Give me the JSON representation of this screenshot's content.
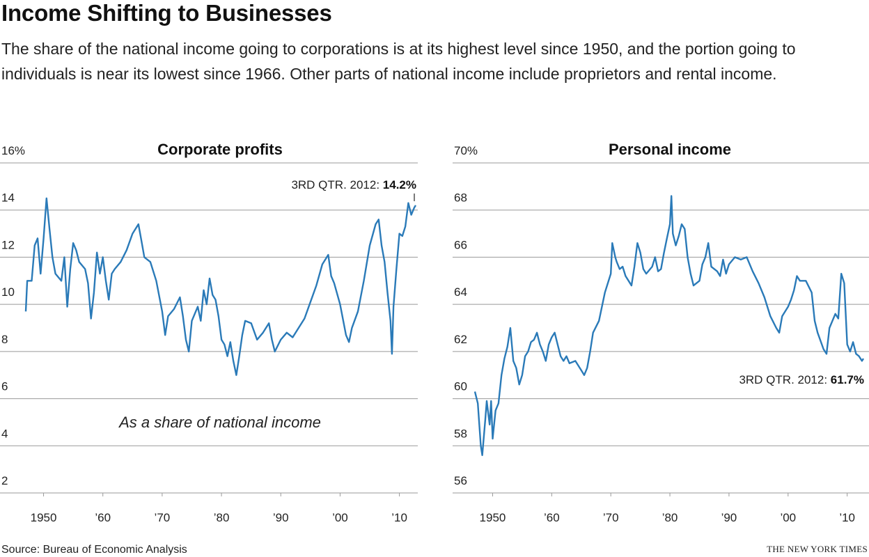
{
  "title": "Income Shifting to Businesses",
  "subtitle": "The share of the national income going to corporations is at its highest level since 1950, and the portion going to individuals is near its lowest since 1966. Other parts of national income include proprietors and rental income.",
  "source": "Source: Bureau of Economic Analysis",
  "credit": "THE NEW YORK TIMES",
  "chart_data": [
    {
      "type": "line",
      "title": "Corporate profits",
      "note": "As a share of national income",
      "annotation": "3RD QTR. 2012:",
      "annotation_value": "14.2%",
      "color": "#2a7ab8",
      "xlim": [
        1947,
        2012.75
      ],
      "xticks": [
        {
          "value": 1950,
          "label": "1950"
        },
        {
          "value": 1960,
          "label": "’60"
        },
        {
          "value": 1970,
          "label": "’70"
        },
        {
          "value": 1980,
          "label": "’80"
        },
        {
          "value": 1990,
          "label": "’90"
        },
        {
          "value": 2000,
          "label": "’00"
        },
        {
          "value": 2010,
          "label": "’10"
        }
      ],
      "ylim": [
        2,
        16
      ],
      "yticks": [
        2,
        4,
        6,
        8,
        10,
        12,
        14,
        {
          "value": 16,
          "label": "16%"
        }
      ],
      "x": [
        1947,
        1947.25,
        1948,
        1948.5,
        1949,
        1949.5,
        1950,
        1950.5,
        1951,
        1951.5,
        1952,
        1953,
        1953.5,
        1954,
        1954.5,
        1955,
        1955.5,
        1956,
        1957,
        1957.5,
        1958,
        1958.5,
        1959,
        1959.5,
        1960,
        1960.5,
        1961,
        1961.5,
        1962,
        1963,
        1964,
        1965,
        1966,
        1966.5,
        1967,
        1968,
        1969,
        1970,
        1970.5,
        1971,
        1972,
        1973,
        1973.5,
        1974,
        1974.5,
        1975,
        1976,
        1976.5,
        1977,
        1977.5,
        1978,
        1978.5,
        1979,
        1979.5,
        1980,
        1980.5,
        1981,
        1981.5,
        1982,
        1982.5,
        1983,
        1983.5,
        1984,
        1985,
        1986,
        1987,
        1988,
        1988.5,
        1989,
        1990,
        1991,
        1992,
        1993,
        1994,
        1995,
        1996,
        1997,
        1998,
        1998.5,
        1999,
        2000,
        2001,
        2001.5,
        2002,
        2003,
        2004,
        2005,
        2006,
        2006.5,
        2007,
        2007.5,
        2008,
        2008.5,
        2008.75,
        2009,
        2009.5,
        2010,
        2010.5,
        2011,
        2011.5,
        2012,
        2012.5,
        2012.75
      ],
      "values": [
        9.7,
        11.0,
        11.0,
        12.5,
        12.8,
        11.3,
        12.8,
        14.5,
        13.2,
        12.0,
        11.3,
        11.0,
        12.0,
        9.9,
        11.5,
        12.6,
        12.3,
        11.8,
        11.5,
        10.9,
        9.4,
        10.5,
        12.2,
        11.3,
        12.0,
        11.0,
        10.2,
        11.3,
        11.5,
        11.8,
        12.3,
        13.0,
        13.4,
        12.7,
        12.0,
        11.8,
        11.0,
        9.7,
        8.7,
        9.5,
        9.8,
        10.3,
        9.5,
        8.5,
        8.0,
        9.3,
        9.9,
        9.3,
        10.6,
        10.0,
        11.1,
        10.4,
        10.2,
        9.5,
        8.5,
        8.3,
        7.8,
        8.4,
        7.6,
        7.0,
        7.8,
        8.7,
        9.3,
        9.2,
        8.5,
        8.8,
        9.2,
        8.5,
        8.0,
        8.5,
        8.8,
        8.6,
        9.0,
        9.4,
        10.1,
        10.8,
        11.7,
        12.1,
        11.2,
        10.9,
        10.0,
        8.7,
        8.4,
        9.0,
        9.7,
        11.0,
        12.5,
        13.4,
        13.6,
        12.5,
        11.8,
        10.5,
        9.3,
        7.9,
        9.9,
        11.5,
        13.0,
        12.9,
        13.3,
        14.3,
        13.8,
        14.1,
        14.2
      ]
    },
    {
      "type": "line",
      "title": "Personal income",
      "annotation": "3RD QTR. 2012:",
      "annotation_value": "61.7%",
      "color": "#2a7ab8",
      "xlim": [
        1947,
        2012.75
      ],
      "xticks": [
        {
          "value": 1950,
          "label": "1950"
        },
        {
          "value": 1960,
          "label": "’60"
        },
        {
          "value": 1970,
          "label": "’70"
        },
        {
          "value": 1980,
          "label": "’80"
        },
        {
          "value": 1990,
          "label": "’90"
        },
        {
          "value": 2000,
          "label": "’00"
        },
        {
          "value": 2010,
          "label": "’10"
        }
      ],
      "ylim": [
        56,
        70
      ],
      "yticks": [
        56,
        58,
        60,
        62,
        64,
        66,
        68,
        {
          "value": 70,
          "label": "70%"
        }
      ],
      "x": [
        1947,
        1947.5,
        1948,
        1948.25,
        1948.75,
        1949,
        1949.5,
        1949.75,
        1950,
        1950.5,
        1951,
        1951.5,
        1952,
        1952.5,
        1953,
        1953.5,
        1954,
        1954.5,
        1955,
        1955.5,
        1956,
        1956.5,
        1957,
        1957.5,
        1958,
        1958.5,
        1959,
        1959.5,
        1960,
        1960.5,
        1961,
        1961.5,
        1962,
        1962.5,
        1963,
        1964,
        1965,
        1965.5,
        1966,
        1966.5,
        1967,
        1968,
        1969,
        1970,
        1970.25,
        1970.75,
        1971,
        1971.5,
        1972,
        1972.5,
        1973,
        1973.5,
        1974,
        1974.5,
        1975,
        1975.5,
        1976,
        1977,
        1977.5,
        1978,
        1978.5,
        1979,
        1979.5,
        1980,
        1980.25,
        1980.5,
        1981,
        1981.5,
        1982,
        1982.5,
        1983,
        1983.5,
        1984,
        1985,
        1985.5,
        1986,
        1986.5,
        1987,
        1988,
        1988.5,
        1989,
        1989.5,
        1990,
        1991,
        1992,
        1993,
        1994,
        1995,
        1996,
        1997,
        1998,
        1998.5,
        1999,
        2000,
        2000.5,
        2001,
        2001.5,
        2002,
        2003,
        2004,
        2004.5,
        2005,
        2006,
        2006.5,
        2007,
        2008,
        2008.5,
        2009,
        2009.5,
        2010,
        2010.5,
        2011,
        2011.5,
        2012,
        2012.5,
        2012.75
      ],
      "values": [
        60.3,
        59.8,
        58.0,
        57.6,
        59.1,
        59.9,
        58.9,
        59.9,
        58.3,
        59.5,
        59.8,
        61.0,
        61.7,
        62.2,
        63.0,
        61.6,
        61.3,
        60.6,
        61.0,
        61.8,
        62.0,
        62.4,
        62.5,
        62.8,
        62.3,
        62.0,
        61.6,
        62.3,
        62.6,
        62.8,
        62.3,
        61.8,
        61.6,
        61.8,
        61.5,
        61.6,
        61.2,
        61.0,
        61.3,
        62.0,
        62.8,
        63.3,
        64.5,
        65.3,
        66.6,
        66.0,
        65.8,
        65.5,
        65.6,
        65.2,
        65.0,
        64.8,
        65.6,
        66.6,
        66.2,
        65.5,
        65.3,
        65.6,
        66.0,
        65.4,
        65.5,
        66.2,
        66.8,
        67.4,
        68.6,
        67.0,
        66.5,
        66.9,
        67.4,
        67.2,
        66.0,
        65.3,
        64.8,
        65.0,
        65.7,
        66.0,
        66.6,
        65.6,
        65.4,
        65.2,
        65.9,
        65.3,
        65.7,
        66.0,
        65.9,
        66.0,
        65.4,
        64.9,
        64.3,
        63.5,
        63.0,
        62.8,
        63.5,
        63.9,
        64.2,
        64.6,
        65.2,
        65.0,
        65.0,
        64.5,
        63.3,
        62.8,
        62.1,
        61.9,
        63.0,
        63.6,
        63.4,
        65.3,
        64.9,
        62.3,
        62.0,
        62.4,
        61.9,
        61.8,
        61.6,
        61.7
      ]
    }
  ]
}
